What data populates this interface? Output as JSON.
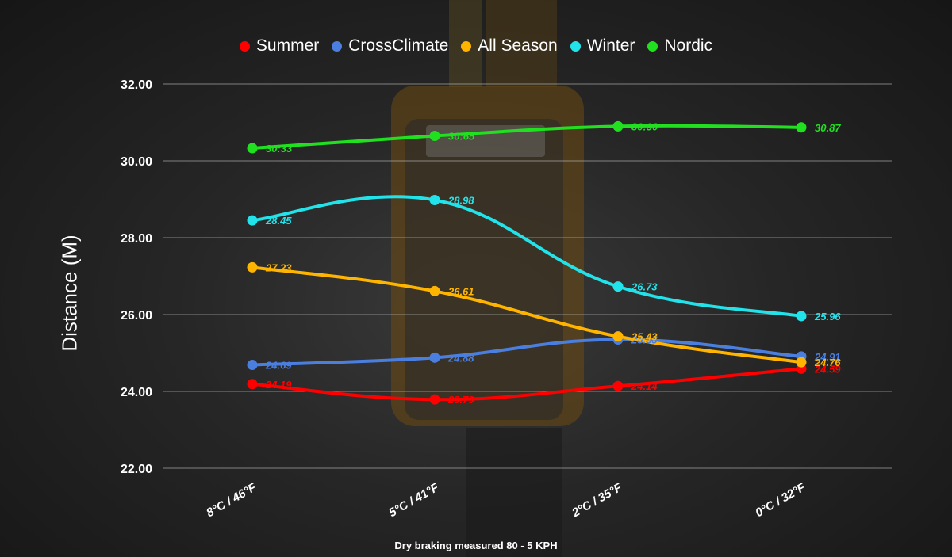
{
  "chart_data": {
    "type": "line",
    "title": "",
    "xlabel": "",
    "ylabel": "Distance (M)",
    "categories": [
      "8°C / 46°F",
      "5°C / 41°F",
      "2°C / 35°F",
      "0°C / 32°F"
    ],
    "ylim": [
      22,
      32
    ],
    "yticks": [
      "22.00",
      "24.00",
      "26.00",
      "28.00",
      "30.00",
      "32.00"
    ],
    "grid": "horizontal",
    "legend_position": "top-center",
    "series": [
      {
        "name": "Summer",
        "color": "#ff0000",
        "values": [
          24.19,
          23.79,
          24.14,
          24.59
        ],
        "labels": [
          "24.19",
          "23.79",
          "24.14",
          "24.59"
        ]
      },
      {
        "name": "CrossClimate",
        "color": "#4a7fe0",
        "values": [
          24.69,
          24.88,
          25.35,
          24.91
        ],
        "labels": [
          "24.69",
          "24.88",
          "25.35",
          "24.91"
        ]
      },
      {
        "name": "All Season",
        "color": "#ffb400",
        "values": [
          27.23,
          26.61,
          25.43,
          24.76
        ],
        "labels": [
          "27.23",
          "26.61",
          "25.43",
          "24.76"
        ]
      },
      {
        "name": "Winter",
        "color": "#22e3ea",
        "values": [
          28.45,
          28.98,
          26.73,
          25.96
        ],
        "labels": [
          "28.45",
          "28.98",
          "26.73",
          "25.96"
        ]
      },
      {
        "name": "Nordic",
        "color": "#20e020",
        "values": [
          30.33,
          30.65,
          30.9,
          30.87
        ],
        "labels": [
          "30:33",
          "30:65",
          "30:90",
          "30.87"
        ]
      }
    ],
    "footnote": "Dry braking measured 80 - 5 KPH"
  }
}
